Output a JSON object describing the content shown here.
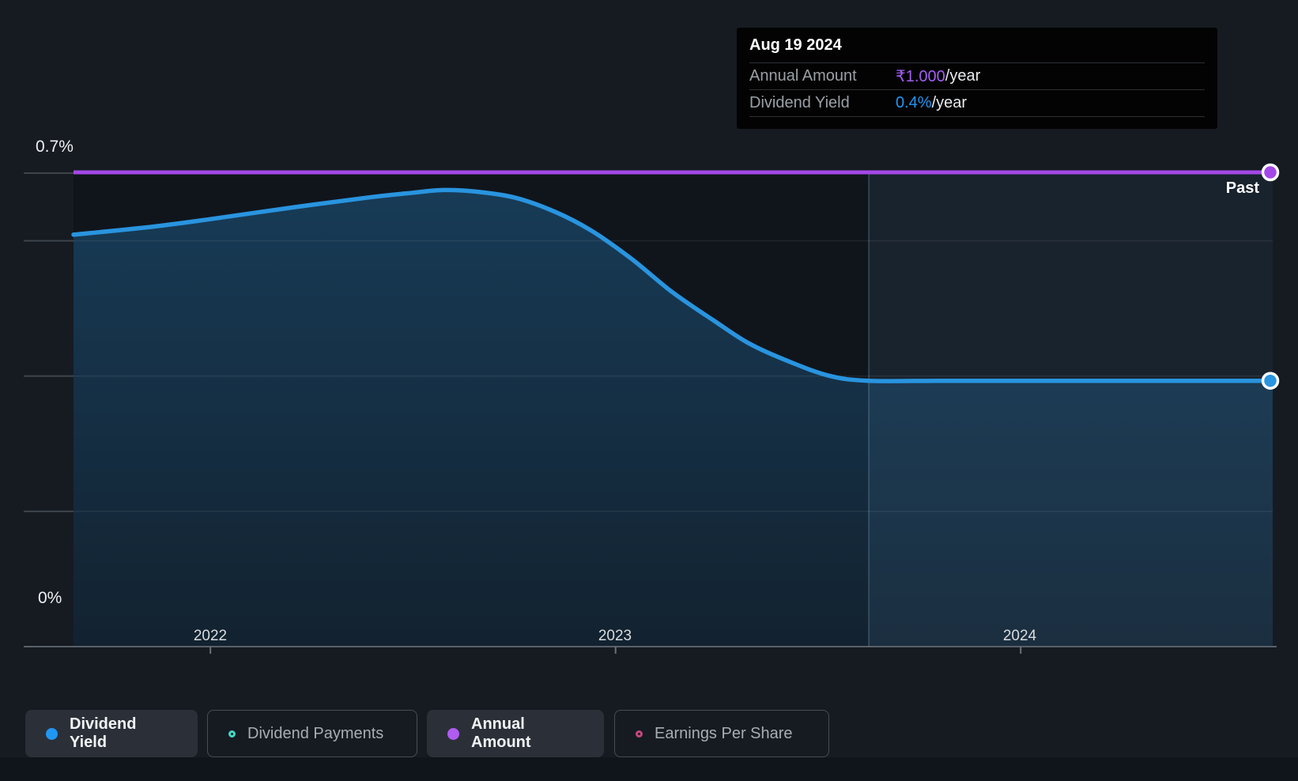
{
  "colors": {
    "page_bg": "#161b22",
    "plot_bg": "#10151c",
    "blue": "#2994df",
    "blue_dot": "#2196f3",
    "purple": "#a348e8",
    "teal": "#41d9c5",
    "pink": "#c2487f",
    "gridline_faint": "rgba(255,255,255,0.07)",
    "axis_line": "#5a6068",
    "divider": "rgba(150,185,215,0.30)",
    "right_tint": "rgba(90,140,185,0.12)"
  },
  "y_axis": {
    "top_label": "0.7%",
    "bottom_label": "0%"
  },
  "x_axis": {
    "tick_labels": [
      "2022",
      "2023",
      "2024"
    ]
  },
  "past_label": "Past",
  "tooltip": {
    "title": "Aug 19 2024",
    "rows": [
      {
        "label": "Annual Amount",
        "value": "₹1.000",
        "suffix": "/year",
        "color": "#a45ef5"
      },
      {
        "label": "Dividend Yield",
        "value": "0.4%",
        "suffix": "/year",
        "color": "#2196f3"
      }
    ]
  },
  "legend": [
    {
      "label": "Dividend Yield",
      "marker": "filled",
      "color": "#2196f3",
      "active": true
    },
    {
      "label": "Dividend Payments",
      "marker": "ring",
      "color": "#41d9c5",
      "active": false
    },
    {
      "label": "Annual Amount",
      "marker": "filled",
      "color": "#b05cf0",
      "active": true
    },
    {
      "label": "Earnings Per Share",
      "marker": "ring",
      "color": "#c2487f",
      "active": false
    }
  ],
  "chart_data": {
    "type": "area",
    "title": "Dividend yield and annual amount history (past)",
    "x_range": [
      2021.662,
      2024.622
    ],
    "x_ticks": [
      2022,
      2023,
      2024
    ],
    "ylim": [
      0,
      0.7
    ],
    "y_unit": "%",
    "gridlines_pct": [
      0.2,
      0.4,
      0.6,
      0.7
    ],
    "divider_x": 2023.625,
    "legend_position": "bottom",
    "series": [
      {
        "name": "Dividend Yield",
        "render": "area-line",
        "color": "#2994df",
        "points": [
          [
            2021.662,
            0.609
          ],
          [
            2021.86,
            0.621
          ],
          [
            2022.0,
            0.632
          ],
          [
            2022.2,
            0.649
          ],
          [
            2022.39,
            0.664
          ],
          [
            2022.5,
            0.671
          ],
          [
            2022.574,
            0.675
          ],
          [
            2022.65,
            0.673
          ],
          [
            2022.75,
            0.664
          ],
          [
            2022.85,
            0.643
          ],
          [
            2022.94,
            0.615
          ],
          [
            2023.04,
            0.573
          ],
          [
            2023.14,
            0.524
          ],
          [
            2023.24,
            0.483
          ],
          [
            2023.33,
            0.448
          ],
          [
            2023.43,
            0.421
          ],
          [
            2023.53,
            0.4
          ],
          [
            2023.625,
            0.393
          ],
          [
            2023.8,
            0.393
          ],
          [
            2024.0,
            0.393
          ],
          [
            2024.3,
            0.393
          ],
          [
            2024.622,
            0.393
          ]
        ],
        "end_value_pct": 0.4
      },
      {
        "name": "Annual Amount",
        "render": "constant-line",
        "color": "#a348e8",
        "constant_value": 1.0,
        "unit": "₹/year",
        "display_at_pct": 0.7
      }
    ]
  }
}
